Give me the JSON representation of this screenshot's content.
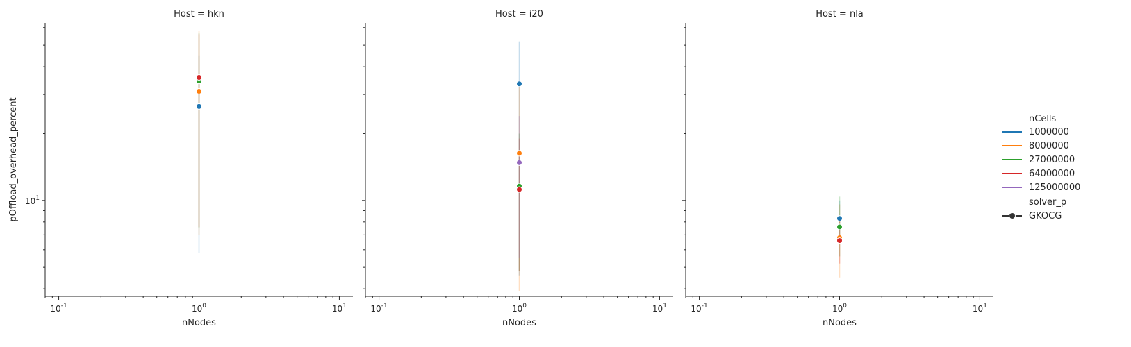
{
  "chart_data": [
    {
      "type": "line",
      "title": "Host = hkn",
      "xlabel": "nNodes",
      "ylabel": "pOffload_overhead_percent",
      "xscale": "log",
      "yscale": "log",
      "xlim": [
        0.08,
        12.5
      ],
      "ylim": [
        3.7,
        63
      ],
      "x_ticks": [
        {
          "value": 0.1,
          "label": "10^-1"
        },
        {
          "value": 1,
          "label": "10^0"
        },
        {
          "value": 10,
          "label": "10^1"
        }
      ],
      "y_ticks": [
        {
          "value": 10,
          "label": "10^1"
        }
      ],
      "series": [
        {
          "name": "1000000",
          "color": "#1f77b4",
          "x": [
            1
          ],
          "y": [
            26.5
          ],
          "ci": [
            5.8,
            45
          ]
        },
        {
          "name": "8000000",
          "color": "#ff7f0e",
          "x": [
            1
          ],
          "y": [
            31
          ],
          "ci": [
            7,
            58
          ]
        },
        {
          "name": "27000000",
          "color": "#2ca02c",
          "x": [
            1
          ],
          "y": [
            34.5
          ],
          "ci": [
            7.5,
            57
          ]
        },
        {
          "name": "64000000",
          "color": "#d62728",
          "x": [
            1
          ],
          "y": [
            35.8
          ],
          "ci": [
            7.6,
            56
          ]
        }
      ]
    },
    {
      "type": "line",
      "title": "Host = i20",
      "xlabel": "nNodes",
      "ylabel": "",
      "xscale": "log",
      "yscale": "log",
      "xlim": [
        0.08,
        12.5
      ],
      "ylim": [
        3.7,
        63
      ],
      "x_ticks": [
        {
          "value": 0.1,
          "label": "10^-1"
        },
        {
          "value": 1,
          "label": "10^0"
        },
        {
          "value": 10,
          "label": "10^1"
        }
      ],
      "series": [
        {
          "name": "1000000",
          "color": "#1f77b4",
          "x": [
            1
          ],
          "y": [
            33.5
          ],
          "ci": [
            4.6,
            52
          ]
        },
        {
          "name": "8000000",
          "color": "#ff7f0e",
          "x": [
            1
          ],
          "y": [
            16.3
          ],
          "ci": [
            3.9,
            33
          ]
        },
        {
          "name": "27000000",
          "color": "#2ca02c",
          "x": [
            1
          ],
          "y": [
            11.6
          ],
          "ci": [
            4.8,
            20
          ]
        },
        {
          "name": "64000000",
          "color": "#d62728",
          "x": [
            1
          ],
          "y": [
            11.2
          ],
          "ci": [
            4.8,
            19
          ]
        },
        {
          "name": "125000000",
          "color": "#9467bd",
          "x": [
            1
          ],
          "y": [
            14.8
          ],
          "ci": [
            5.5,
            24
          ]
        }
      ]
    },
    {
      "type": "line",
      "title": "Host = nla",
      "xlabel": "nNodes",
      "ylabel": "",
      "xscale": "log",
      "yscale": "log",
      "xlim": [
        0.08,
        12.5
      ],
      "ylim": [
        3.7,
        63
      ],
      "x_ticks": [
        {
          "value": 0.1,
          "label": "10^-1"
        },
        {
          "value": 1,
          "label": "10^0"
        },
        {
          "value": 10,
          "label": "10^1"
        }
      ],
      "series": [
        {
          "name": "1000000",
          "color": "#1f77b4",
          "x": [
            1
          ],
          "y": [
            8.3
          ],
          "ci": [
            6.6,
            10
          ]
        },
        {
          "name": "8000000",
          "color": "#ff7f0e",
          "x": [
            1
          ],
          "y": [
            6.8
          ],
          "ci": [
            4.5,
            9.6
          ]
        },
        {
          "name": "27000000",
          "color": "#2ca02c",
          "x": [
            1
          ],
          "y": [
            7.6
          ],
          "ci": [
            5.6,
            10.4
          ]
        },
        {
          "name": "64000000",
          "color": "#d62728",
          "x": [
            1
          ],
          "y": [
            6.6
          ],
          "ci": [
            5.2,
            8.2
          ]
        }
      ]
    }
  ],
  "legend": {
    "placement": "right",
    "hue_title": "nCells",
    "hue_entries": [
      {
        "label": "1000000",
        "color": "#1f77b4"
      },
      {
        "label": "8000000",
        "color": "#ff7f0e"
      },
      {
        "label": "27000000",
        "color": "#2ca02c"
      },
      {
        "label": "64000000",
        "color": "#d62728"
      },
      {
        "label": "125000000",
        "color": "#9467bd"
      }
    ],
    "style_title": "solver_p",
    "style_entries": [
      {
        "label": "GKOCG",
        "color": "#333333"
      }
    ]
  }
}
